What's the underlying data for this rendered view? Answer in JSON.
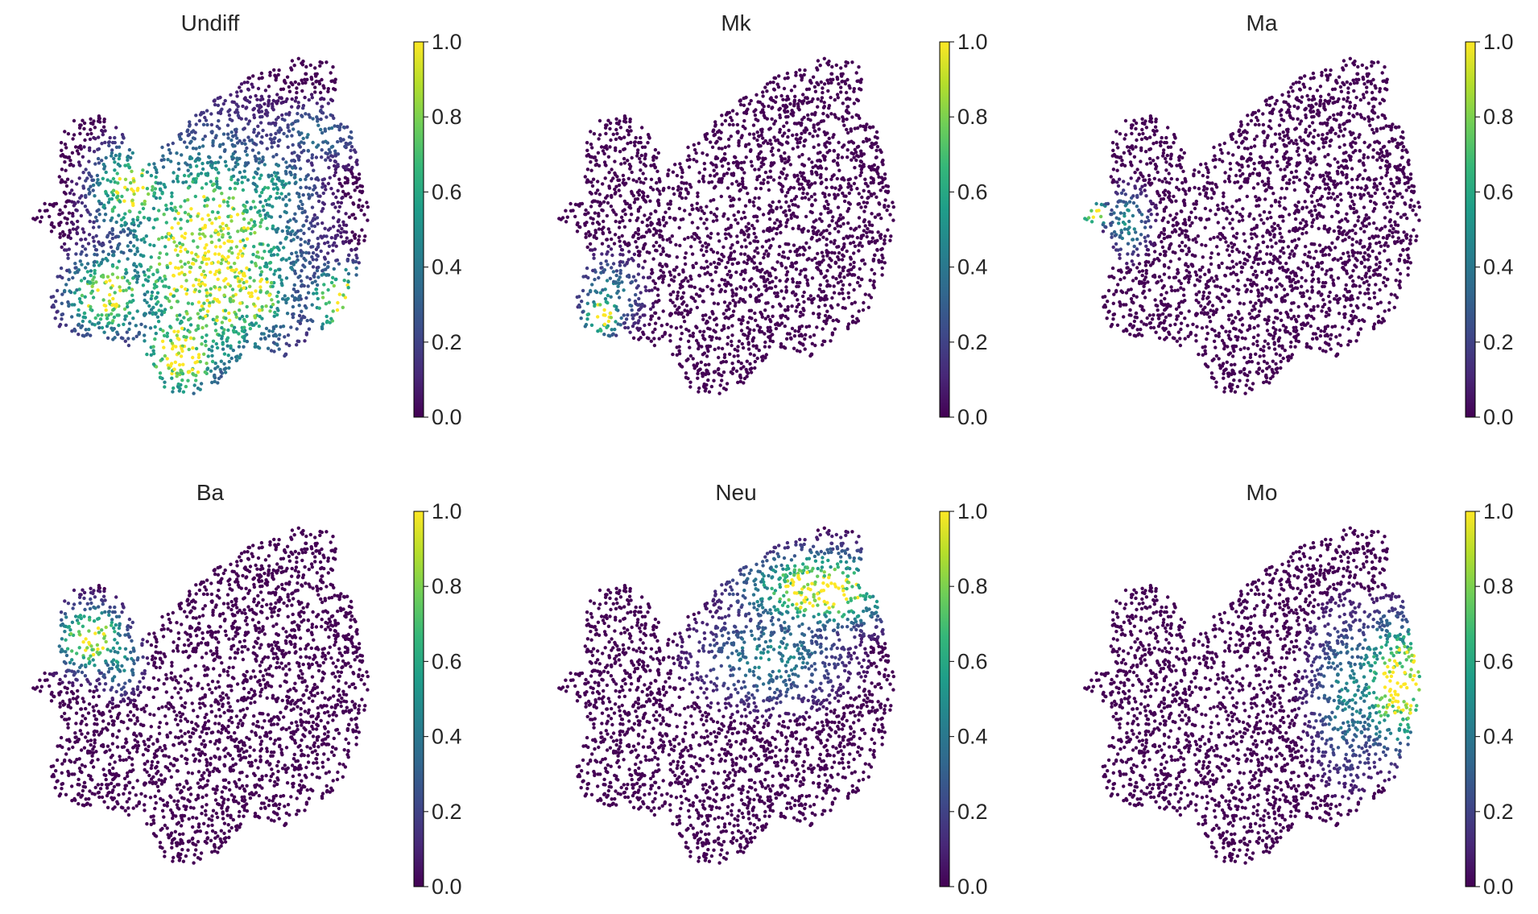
{
  "figure": {
    "colormap": "viridis",
    "colormap_stops": [
      "#440154",
      "#482878",
      "#3e4989",
      "#31688e",
      "#26828e",
      "#1f9e89",
      "#35b779",
      "#6ece58",
      "#b5de2b",
      "#fde725"
    ]
  },
  "chart_data": [
    {
      "type": "scatter",
      "title": "Undiff",
      "xlabel": "",
      "ylabel": "",
      "colorbar": {
        "range": [
          0.0,
          1.0
        ],
        "ticks": [
          "0.0",
          "0.2",
          "0.4",
          "0.6",
          "0.8",
          "1.0"
        ]
      },
      "high_regions": [
        {
          "x": 0.5,
          "y": 0.42,
          "sx": 0.16,
          "sy": 0.22,
          "value": 1.0
        },
        {
          "x": 0.42,
          "y": 0.15,
          "sx": 0.08,
          "sy": 0.09,
          "value": 1.0
        },
        {
          "x": 0.22,
          "y": 0.32,
          "sx": 0.08,
          "sy": 0.08,
          "value": 0.95
        },
        {
          "x": 0.28,
          "y": 0.62,
          "sx": 0.07,
          "sy": 0.08,
          "value": 0.95
        },
        {
          "x": 0.62,
          "y": 0.32,
          "sx": 0.07,
          "sy": 0.08,
          "value": 0.95
        },
        {
          "x": 0.86,
          "y": 0.3,
          "sx": 0.06,
          "sy": 0.07,
          "value": 0.95
        },
        {
          "x": 0.66,
          "y": 0.62,
          "sx": 0.09,
          "sy": 0.08,
          "value": 0.55
        },
        {
          "x": 0.8,
          "y": 0.78,
          "sx": 0.1,
          "sy": 0.06,
          "value": 0.35
        }
      ]
    },
    {
      "type": "scatter",
      "title": "Mk",
      "xlabel": "",
      "ylabel": "",
      "colorbar": {
        "range": [
          0.0,
          1.0
        ],
        "ticks": [
          "0.0",
          "0.2",
          "0.4",
          "0.6",
          "0.8",
          "1.0"
        ]
      },
      "high_regions": [
        {
          "x": 0.13,
          "y": 0.26,
          "sx": 0.035,
          "sy": 0.04,
          "value": 1.0
        },
        {
          "x": 0.15,
          "y": 0.32,
          "sx": 0.06,
          "sy": 0.07,
          "value": 0.45
        }
      ]
    },
    {
      "type": "scatter",
      "title": "Ma",
      "xlabel": "",
      "ylabel": "",
      "colorbar": {
        "range": [
          0.0,
          1.0
        ],
        "ticks": [
          "0.0",
          "0.2",
          "0.4",
          "0.6",
          "0.8",
          "1.0"
        ]
      },
      "high_regions": [
        {
          "x": 0.04,
          "y": 0.55,
          "sx": 0.03,
          "sy": 0.025,
          "value": 1.0
        },
        {
          "x": 0.13,
          "y": 0.53,
          "sx": 0.04,
          "sy": 0.06,
          "value": 0.5
        }
      ]
    },
    {
      "type": "scatter",
      "title": "Ba",
      "xlabel": "",
      "ylabel": "",
      "colorbar": {
        "range": [
          0.0,
          1.0
        ],
        "ticks": [
          "0.0",
          "0.2",
          "0.4",
          "0.6",
          "0.8",
          "1.0"
        ]
      },
      "high_regions": [
        {
          "x": 0.17,
          "y": 0.68,
          "sx": 0.065,
          "sy": 0.06,
          "value": 1.0
        },
        {
          "x": 0.25,
          "y": 0.62,
          "sx": 0.04,
          "sy": 0.06,
          "value": 0.55
        }
      ]
    },
    {
      "type": "scatter",
      "title": "Neu",
      "xlabel": "",
      "ylabel": "",
      "colorbar": {
        "range": [
          0.0,
          1.0
        ],
        "ticks": [
          "0.0",
          "0.2",
          "0.4",
          "0.6",
          "0.8",
          "1.0"
        ]
      },
      "high_regions": [
        {
          "x": 0.74,
          "y": 0.82,
          "sx": 0.14,
          "sy": 0.07,
          "value": 1.0
        },
        {
          "x": 0.6,
          "y": 0.63,
          "sx": 0.13,
          "sy": 0.09,
          "value": 0.45
        }
      ]
    },
    {
      "type": "scatter",
      "title": "Mo",
      "xlabel": "",
      "ylabel": "",
      "colorbar": {
        "range": [
          0.0,
          1.0
        ],
        "ticks": [
          "0.0",
          "0.2",
          "0.4",
          "0.6",
          "0.8",
          "1.0"
        ]
      },
      "high_regions": [
        {
          "x": 0.88,
          "y": 0.55,
          "sx": 0.08,
          "sy": 0.12,
          "value": 1.0
        },
        {
          "x": 0.74,
          "y": 0.52,
          "sx": 0.07,
          "sy": 0.15,
          "value": 0.45
        }
      ]
    }
  ]
}
